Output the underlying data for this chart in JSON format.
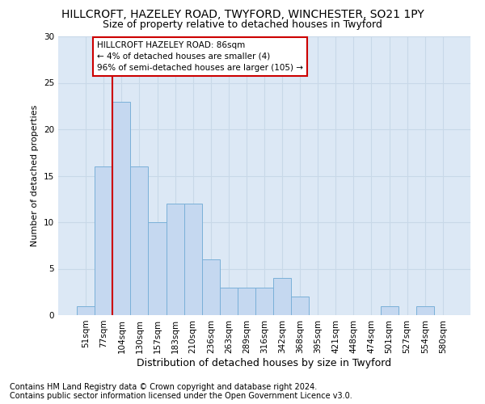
{
  "title_line1": "HILLCROFT, HAZELEY ROAD, TWYFORD, WINCHESTER, SO21 1PY",
  "title_line2": "Size of property relative to detached houses in Twyford",
  "xlabel": "Distribution of detached houses by size in Twyford",
  "ylabel": "Number of detached properties",
  "footnote1": "Contains HM Land Registry data © Crown copyright and database right 2024.",
  "footnote2": "Contains public sector information licensed under the Open Government Licence v3.0.",
  "bin_labels": [
    "51sqm",
    "77sqm",
    "104sqm",
    "130sqm",
    "157sqm",
    "183sqm",
    "210sqm",
    "236sqm",
    "263sqm",
    "289sqm",
    "316sqm",
    "342sqm",
    "368sqm",
    "395sqm",
    "421sqm",
    "448sqm",
    "474sqm",
    "501sqm",
    "527sqm",
    "554sqm",
    "580sqm"
  ],
  "bar_values": [
    1,
    16,
    23,
    16,
    10,
    12,
    12,
    6,
    3,
    3,
    3,
    4,
    2,
    0,
    0,
    0,
    0,
    1,
    0,
    1,
    0
  ],
  "bar_color": "#c5d8f0",
  "bar_edge_color": "#7ab0d8",
  "vline_color": "#cc0000",
  "vline_bar_index": 1,
  "annotation_line1": "HILLCROFT HAZELEY ROAD: 86sqm",
  "annotation_line2": "← 4% of detached houses are smaller (4)",
  "annotation_line3": "96% of semi-detached houses are larger (105) →",
  "annotation_box_edge": "#cc0000",
  "ylim": [
    0,
    30
  ],
  "yticks": [
    0,
    5,
    10,
    15,
    20,
    25,
    30
  ],
  "grid_color": "#c8d8e8",
  "fig_background_color": "#ffffff",
  "plot_bg_color": "#dce8f5",
  "title1_fontsize": 10,
  "title2_fontsize": 9,
  "ylabel_fontsize": 8,
  "xlabel_fontsize": 9,
  "tick_fontsize": 7.5,
  "footnote_fontsize": 7
}
